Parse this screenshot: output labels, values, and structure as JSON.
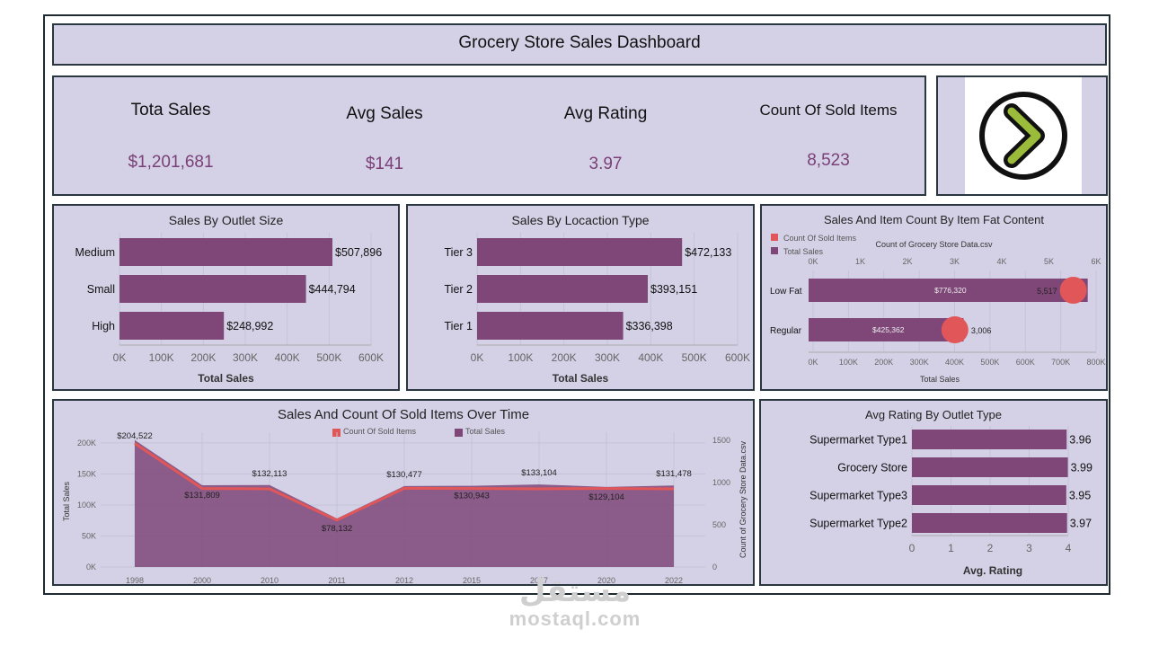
{
  "dashboard": {
    "title": "Grocery Store Sales Dashboard"
  },
  "kpis": [
    {
      "label": "Tota Sales",
      "value": "$1,201,681"
    },
    {
      "label": "Avg Sales",
      "value": "$141"
    },
    {
      "label": "Avg Rating",
      "value": "3.97"
    },
    {
      "label": "Count Of Sold Items",
      "value": "8,523"
    }
  ],
  "colors": {
    "bar": "#7e4778",
    "panel": "#d4d1e6",
    "accent_red": "#e15759",
    "logo_green": "#9bbb3a"
  },
  "logo": {
    "icon": "chevron-right-circle-icon"
  },
  "chart_data": [
    {
      "type": "bar",
      "title": "Sales By Outlet Size",
      "categories": [
        "Medium",
        "Small",
        "High"
      ],
      "values": [
        507896,
        444794,
        248992
      ],
      "value_labels": [
        "$507,896",
        "$444,794",
        "$248,992"
      ],
      "ticks": [
        "0K",
        "100K",
        "200K",
        "300K",
        "400K",
        "500K",
        "600K"
      ],
      "xlim": [
        0,
        600000
      ],
      "xlabel": "Total Sales"
    },
    {
      "type": "bar",
      "title": "Sales By Locaction Type",
      "categories": [
        "Tier 3",
        "Tier 2",
        "Tier 1"
      ],
      "values": [
        472133,
        393151,
        336398
      ],
      "value_labels": [
        "$472,133",
        "$393,151",
        "$336,398"
      ],
      "ticks": [
        "0K",
        "100K",
        "200K",
        "300K",
        "400K",
        "500K",
        "600K"
      ],
      "xlim": [
        0,
        600000
      ],
      "xlabel": "Total Sales"
    },
    {
      "type": "bar",
      "title": "Sales And Item Count By Item Fat Content",
      "legend": [
        "Count Of Sold Items",
        "Total Sales"
      ],
      "top_axis_title": "Count of Grocery Store Data.csv",
      "top_ticks": [
        "0K",
        "1K",
        "2K",
        "3K",
        "4K",
        "5K",
        "6K"
      ],
      "top_lim": [
        0,
        6000
      ],
      "bottom_ticks": [
        "0K",
        "100K",
        "200K",
        "300K",
        "400K",
        "500K",
        "600K",
        "700K",
        "800K"
      ],
      "bottom_lim": [
        0,
        800000
      ],
      "xlabel": "Total Sales",
      "categories": [
        "Low Fat",
        "Regular"
      ],
      "sales": [
        776320,
        425362
      ],
      "sales_labels": [
        "$776,320",
        "$425,362"
      ],
      "counts": [
        5517,
        3006
      ],
      "count_labels": [
        "5,517",
        "3,006"
      ]
    },
    {
      "type": "area",
      "title": "Sales And Count Of Sold Items Over Time",
      "legend": [
        "Count Of Sold Items",
        "Total Sales"
      ],
      "x": [
        "1998",
        "2000",
        "2010",
        "2011",
        "2012",
        "2015",
        "2017",
        "2020",
        "2022"
      ],
      "sales": [
        204522,
        131809,
        132113,
        78132,
        130477,
        130943,
        133104,
        129104,
        131478
      ],
      "sales_labels": [
        "$204,522",
        "$131,809",
        "$132,113",
        "$78,132",
        "$130,477",
        "$130,943",
        "$133,104",
        "$129,104",
        "$131,478"
      ],
      "counts": [
        1463,
        930,
        926,
        555,
        932,
        929,
        926,
        930,
        926
      ],
      "ylabel": "Total Sales",
      "y2label": "Count of Grocery Store Data.csv",
      "y_ticks": [
        "0K",
        "50K",
        "100K",
        "150K",
        "200K"
      ],
      "ylim": [
        0,
        210000
      ],
      "y2_ticks": [
        "0",
        "500",
        "1000",
        "1500"
      ],
      "y2lim": [
        0,
        1500
      ]
    },
    {
      "type": "bar",
      "title": "Avg Rating By Outlet Type",
      "categories": [
        "Supermarket Type1",
        "Grocery Store",
        "Supermarket Type3",
        "Supermarket Type2"
      ],
      "values": [
        3.96,
        3.99,
        3.95,
        3.97
      ],
      "value_labels": [
        "3.96",
        "3.99",
        "3.95",
        "3.97"
      ],
      "ticks": [
        "0",
        "1",
        "2",
        "3",
        "4"
      ],
      "xlim": [
        0,
        4
      ],
      "xlabel": "Avg. Rating"
    }
  ],
  "watermark": {
    "arabic": "مستقل",
    "latin": "mostaql.com"
  }
}
